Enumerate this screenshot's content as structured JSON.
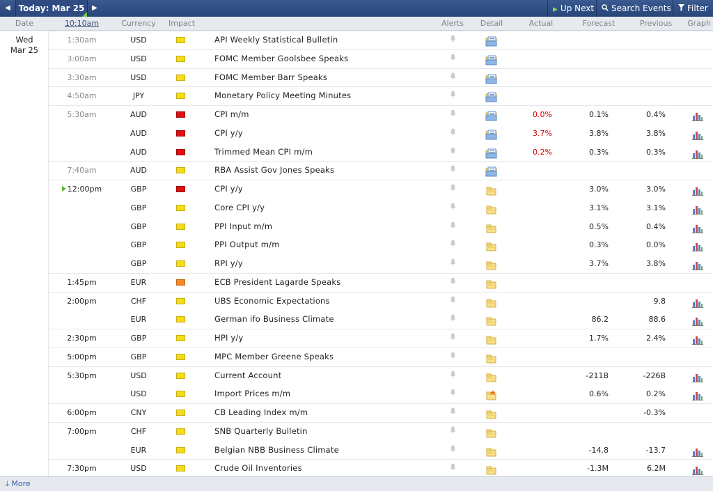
{
  "toolbar": {
    "prev_icon": "chevron-left-icon",
    "today_label": "Today: Mar 25",
    "next_icon": "chevron-right-icon",
    "up_next_label": "Up Next",
    "search_label": "Search Events",
    "filter_label": "Filter"
  },
  "columns": {
    "date": "Date",
    "time": "10:10am",
    "currency": "Currency",
    "impact": "Impact",
    "alerts": "Alerts",
    "detail": "Detail",
    "actual": "Actual",
    "forecast": "Forecast",
    "previous": "Previous",
    "graph": "Graph"
  },
  "date": {
    "weekday": "Wed",
    "day": "Mar 25"
  },
  "colors": {
    "high": "#dd1111",
    "medium": "#f08a2a",
    "low": "#f3dc1c",
    "actual_worse": "#d40000",
    "accent": "#2e4b82"
  },
  "events": [
    {
      "time": "1:30am",
      "past": true,
      "currency": "USD",
      "impact": "low",
      "event": "API Weekly Statistical Bulletin",
      "actual": "",
      "forecast": "",
      "previous": "",
      "graph": false,
      "detail": "blue"
    },
    {
      "time": "3:00am",
      "past": true,
      "currency": "USD",
      "impact": "low",
      "event": "FOMC Member Goolsbee Speaks",
      "actual": "",
      "forecast": "",
      "previous": "",
      "graph": false,
      "detail": "blue"
    },
    {
      "time": "3:30am",
      "past": true,
      "currency": "USD",
      "impact": "low",
      "event": "FOMC Member Barr Speaks",
      "actual": "",
      "forecast": "",
      "previous": "",
      "graph": false,
      "detail": "blue"
    },
    {
      "time": "4:50am",
      "past": true,
      "currency": "JPY",
      "impact": "low",
      "event": "Monetary Policy Meeting Minutes",
      "actual": "",
      "forecast": "",
      "previous": "",
      "graph": false,
      "detail": "blue"
    },
    {
      "time": "5:30am",
      "past": true,
      "currency": "AUD",
      "impact": "high",
      "event": "CPI m/m",
      "actual": "0.0%",
      "forecast": "0.1%",
      "previous": "0.4%",
      "graph": true,
      "detail": "blue"
    },
    {
      "time": "",
      "past": true,
      "currency": "AUD",
      "impact": "high",
      "event": "CPI y/y",
      "actual": "3.7%",
      "forecast": "3.8%",
      "previous": "3.8%",
      "graph": true,
      "detail": "blue"
    },
    {
      "time": "",
      "past": true,
      "currency": "AUD",
      "impact": "high",
      "event": "Trimmed Mean CPI m/m",
      "actual": "0.2%",
      "forecast": "0.3%",
      "previous": "0.3%",
      "graph": true,
      "detail": "blue"
    },
    {
      "time": "7:40am",
      "past": true,
      "currency": "AUD",
      "impact": "low",
      "event": "RBA Assist Gov Jones Speaks",
      "actual": "",
      "forecast": "",
      "previous": "",
      "graph": false,
      "detail": "blue"
    },
    {
      "time": "12:00pm",
      "past": false,
      "now": true,
      "currency": "GBP",
      "impact": "high",
      "event": "CPI y/y",
      "actual": "",
      "forecast": "3.0%",
      "previous": "3.0%",
      "graph": true,
      "detail": "yellow"
    },
    {
      "time": "",
      "past": false,
      "currency": "GBP",
      "impact": "low",
      "event": "Core CPI y/y",
      "actual": "",
      "forecast": "3.1%",
      "previous": "3.1%",
      "graph": true,
      "detail": "yellow"
    },
    {
      "time": "",
      "past": false,
      "currency": "GBP",
      "impact": "low",
      "event": "PPI Input m/m",
      "actual": "",
      "forecast": "0.5%",
      "previous": "0.4%",
      "graph": true,
      "detail": "yellow"
    },
    {
      "time": "",
      "past": false,
      "currency": "GBP",
      "impact": "low",
      "event": "PPI Output m/m",
      "actual": "",
      "forecast": "0.3%",
      "previous": "0.0%",
      "graph": true,
      "detail": "yellow"
    },
    {
      "time": "",
      "past": false,
      "currency": "GBP",
      "impact": "low",
      "event": "RPI y/y",
      "actual": "",
      "forecast": "3.7%",
      "previous": "3.8%",
      "graph": true,
      "detail": "yellow"
    },
    {
      "time": "1:45pm",
      "past": false,
      "currency": "EUR",
      "impact": "medium",
      "event": "ECB President Lagarde Speaks",
      "actual": "",
      "forecast": "",
      "previous": "",
      "graph": false,
      "detail": "yellow"
    },
    {
      "time": "2:00pm",
      "past": false,
      "currency": "CHF",
      "impact": "low",
      "event": "UBS Economic Expectations",
      "actual": "",
      "forecast": "",
      "previous": "9.8",
      "graph": true,
      "detail": "yellow"
    },
    {
      "time": "",
      "past": false,
      "currency": "EUR",
      "impact": "low",
      "event": "German ifo Business Climate",
      "actual": "",
      "forecast": "86.2",
      "previous": "88.6",
      "graph": true,
      "detail": "yellow"
    },
    {
      "time": "2:30pm",
      "past": false,
      "currency": "GBP",
      "impact": "low",
      "event": "HPI y/y",
      "actual": "",
      "forecast": "1.7%",
      "previous": "2.4%",
      "graph": true,
      "detail": "yellow"
    },
    {
      "time": "5:00pm",
      "past": false,
      "currency": "GBP",
      "impact": "low",
      "event": "MPC Member Greene Speaks",
      "actual": "",
      "forecast": "",
      "previous": "",
      "graph": false,
      "detail": "yellow"
    },
    {
      "time": "5:30pm",
      "past": false,
      "currency": "USD",
      "impact": "low",
      "event": "Current Account",
      "actual": "",
      "forecast": "-211B",
      "previous": "-226B",
      "graph": true,
      "detail": "yellow"
    },
    {
      "time": "",
      "past": false,
      "currency": "USD",
      "impact": "low",
      "event": "Import Prices m/m",
      "actual": "",
      "forecast": "0.6%",
      "previous": "0.2%",
      "graph": true,
      "detail": "star"
    },
    {
      "time": "6:00pm",
      "past": false,
      "currency": "CNY",
      "impact": "low",
      "event": "CB Leading Index m/m",
      "actual": "",
      "forecast": "",
      "previous": "-0.3%",
      "graph": false,
      "detail": "yellow"
    },
    {
      "time": "7:00pm",
      "past": false,
      "currency": "CHF",
      "impact": "low",
      "event": "SNB Quarterly Bulletin",
      "actual": "",
      "forecast": "",
      "previous": "",
      "graph": false,
      "detail": "yellow"
    },
    {
      "time": "",
      "past": false,
      "currency": "EUR",
      "impact": "low",
      "event": "Belgian NBB Business Climate",
      "actual": "",
      "forecast": "-14.8",
      "previous": "-13.7",
      "graph": true,
      "detail": "yellow"
    },
    {
      "time": "7:30pm",
      "past": false,
      "currency": "USD",
      "impact": "low",
      "event": "Crude Oil Inventories",
      "actual": "",
      "forecast": "-1.3M",
      "previous": "6.2M",
      "graph": true,
      "detail": "yellow"
    }
  ],
  "footer": {
    "more_label": "More",
    "more_icon": "download-arrow-icon"
  }
}
